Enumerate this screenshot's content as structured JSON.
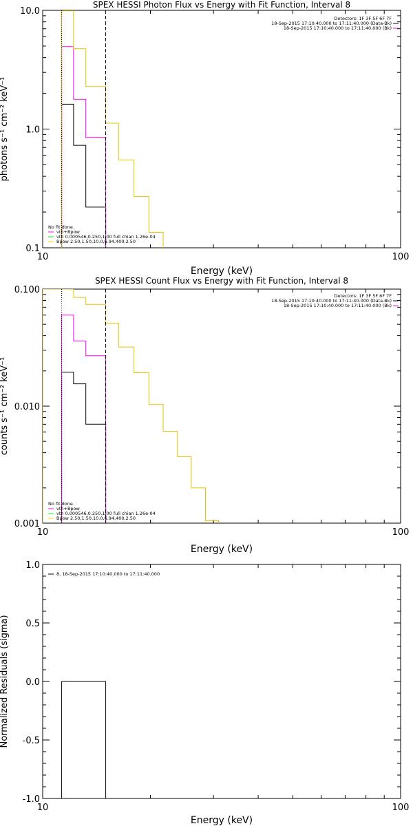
{
  "chart_data": [
    {
      "type": "line",
      "title": "SPEX HESSI Photon Flux vs Energy with Fit Function, Interval 8",
      "xlabel": "Energy (keV)",
      "ylabel": "photons s⁻¹ cm⁻² keV⁻¹",
      "x_scale": "log",
      "y_scale": "log",
      "xlim": [
        10,
        100
      ],
      "ylim": [
        0.1,
        10
      ],
      "x_tick_labels": [
        "10",
        "100"
      ],
      "y_tick_values": [
        0.1,
        1.0,
        10.0
      ],
      "y_tick_labels": [
        "0.1",
        "1.0",
        "10.0"
      ],
      "vlines": [
        {
          "x": 11.3,
          "style": "dotted",
          "color": "#000000"
        },
        {
          "x": 15.0,
          "style": "dashed",
          "color": "#000000"
        }
      ],
      "header_lines": [
        {
          "text": "Detectors: 1F 3F 5F 6F 7F",
          "color": "",
          "align": "right"
        },
        {
          "text": "18-Sep-2015 17:10:40.000 to 17:11:40.000 (Data-Bk)",
          "color": "#000000",
          "align": "right"
        },
        {
          "text": "18-Sep-2015 17:10:40.000 to 17:11:40.000 (Bk)",
          "color": "#ff00ff",
          "align": "right"
        }
      ],
      "legend_lines": [
        {
          "text": "No fit done.",
          "color": ""
        },
        {
          "text": "vth+Bpow",
          "color": "#ff00ff"
        },
        {
          "text": "vth 0.000546,0.250,1.00  full chian 1.26e-04",
          "color": "#00ff00"
        },
        {
          "text": "Bpow 2.50,1.50,10.0,6.94,400,2.50",
          "color": "#ffcc00"
        }
      ],
      "series": [
        {
          "color": "#000000",
          "edges": [
            11.3,
            12.2,
            13.2,
            15.0
          ],
          "values": [
            1.62,
            0.73,
            0.22
          ]
        },
        {
          "color": "#ff00ff",
          "edges": [
            11.3,
            12.2,
            13.2,
            15.0
          ],
          "values": [
            4.95,
            1.78,
            0.85
          ]
        },
        {
          "color": "#e6c200",
          "edges": [
            11.3,
            12.2,
            13.2,
            15.0,
            16.3,
            18.0,
            19.8,
            21.7,
            23.8
          ],
          "values": [
            9.9,
            4.75,
            2.28,
            1.12,
            0.55,
            0.27,
            0.135,
            0.095
          ]
        }
      ]
    },
    {
      "type": "line",
      "title": "SPEX HESSI Count Flux vs Energy with Fit Function, Interval 8",
      "xlabel": "Energy (keV)",
      "ylabel": "counts s⁻¹ cm⁻² keV⁻¹",
      "x_scale": "log",
      "y_scale": "log",
      "xlim": [
        10,
        100
      ],
      "ylim": [
        0.001,
        0.1
      ],
      "x_tick_labels": [
        "10",
        "100"
      ],
      "y_tick_values": [
        0.001,
        0.01,
        0.1
      ],
      "y_tick_labels": [
        "0.001",
        "0.010",
        "0.100"
      ],
      "vlines": [
        {
          "x": 11.3,
          "style": "dotted",
          "color": "#000000"
        },
        {
          "x": 15.0,
          "style": "dashed",
          "color": "#000000"
        }
      ],
      "header_lines": [
        {
          "text": "Detectors: 1F 3F 5F 6F 7F",
          "color": "",
          "align": "right"
        },
        {
          "text": "18-Sep-2015 17:10:40.000 to 17:11:40.000 (Data-Bk)",
          "color": "#000000",
          "align": "right"
        },
        {
          "text": "18-Sep-2015 17:10:40.000 to 17:11:40.000 (Bk)",
          "color": "#ff00ff",
          "align": "right"
        }
      ],
      "legend_lines": [
        {
          "text": "No fit done.",
          "color": ""
        },
        {
          "text": "vth+Bpow",
          "color": "#ff00ff"
        },
        {
          "text": "vth 0.000546,0.250,1.00  full chian 1.26e-04",
          "color": "#00ff00"
        },
        {
          "text": "Bpow 2.50,1.50,10.0,6.94,400,2.50",
          "color": "#ffcc00"
        }
      ],
      "series": [
        {
          "color": "#000000",
          "edges": [
            11.3,
            12.2,
            13.2,
            15.0
          ],
          "values": [
            0.0195,
            0.0155,
            0.007
          ]
        },
        {
          "color": "#ff00ff",
          "edges": [
            11.3,
            12.2,
            13.2,
            15.0
          ],
          "values": [
            0.06,
            0.036,
            0.027
          ]
        },
        {
          "color": "#e6c200",
          "edges": [
            10.0,
            11.3,
            12.2,
            13.2,
            15.0,
            16.3,
            18.0,
            19.8,
            21.7,
            23.8,
            26.0,
            28.5,
            31.0,
            34.0
          ],
          "values": [
            0.1,
            0.1,
            0.085,
            0.074,
            0.051,
            0.032,
            0.0193,
            0.0103,
            0.0061,
            0.0037,
            0.002,
            0.00105,
            0.00095
          ]
        }
      ]
    },
    {
      "type": "line",
      "title": "",
      "xlabel": "Energy (keV)",
      "ylabel": "Normalized Residuals (sigma)",
      "x_scale": "log",
      "y_scale": "linear",
      "xlim": [
        10,
        100
      ],
      "ylim": [
        -1.0,
        1.0
      ],
      "x_tick_labels": [
        "10",
        "100"
      ],
      "y_tick_values": [
        -1.0,
        -0.5,
        0.0,
        0.5,
        1.0
      ],
      "y_tick_labels": [
        "-1.0",
        "-0.5",
        "0.0",
        "0.5",
        "1.0"
      ],
      "vlines": [],
      "header_lines": [],
      "legend_lines": [
        {
          "text": "8, 18-Sep-2015 17:10:40.000 to 17:11:40.000",
          "color": "#000000",
          "align": "left"
        }
      ],
      "series": [
        {
          "color": "#000000",
          "points": [
            [
              11.3,
              -1.05
            ],
            [
              11.3,
              0.0
            ],
            [
              15.0,
              0.0
            ],
            [
              15.0,
              -1.05
            ]
          ]
        }
      ]
    }
  ]
}
